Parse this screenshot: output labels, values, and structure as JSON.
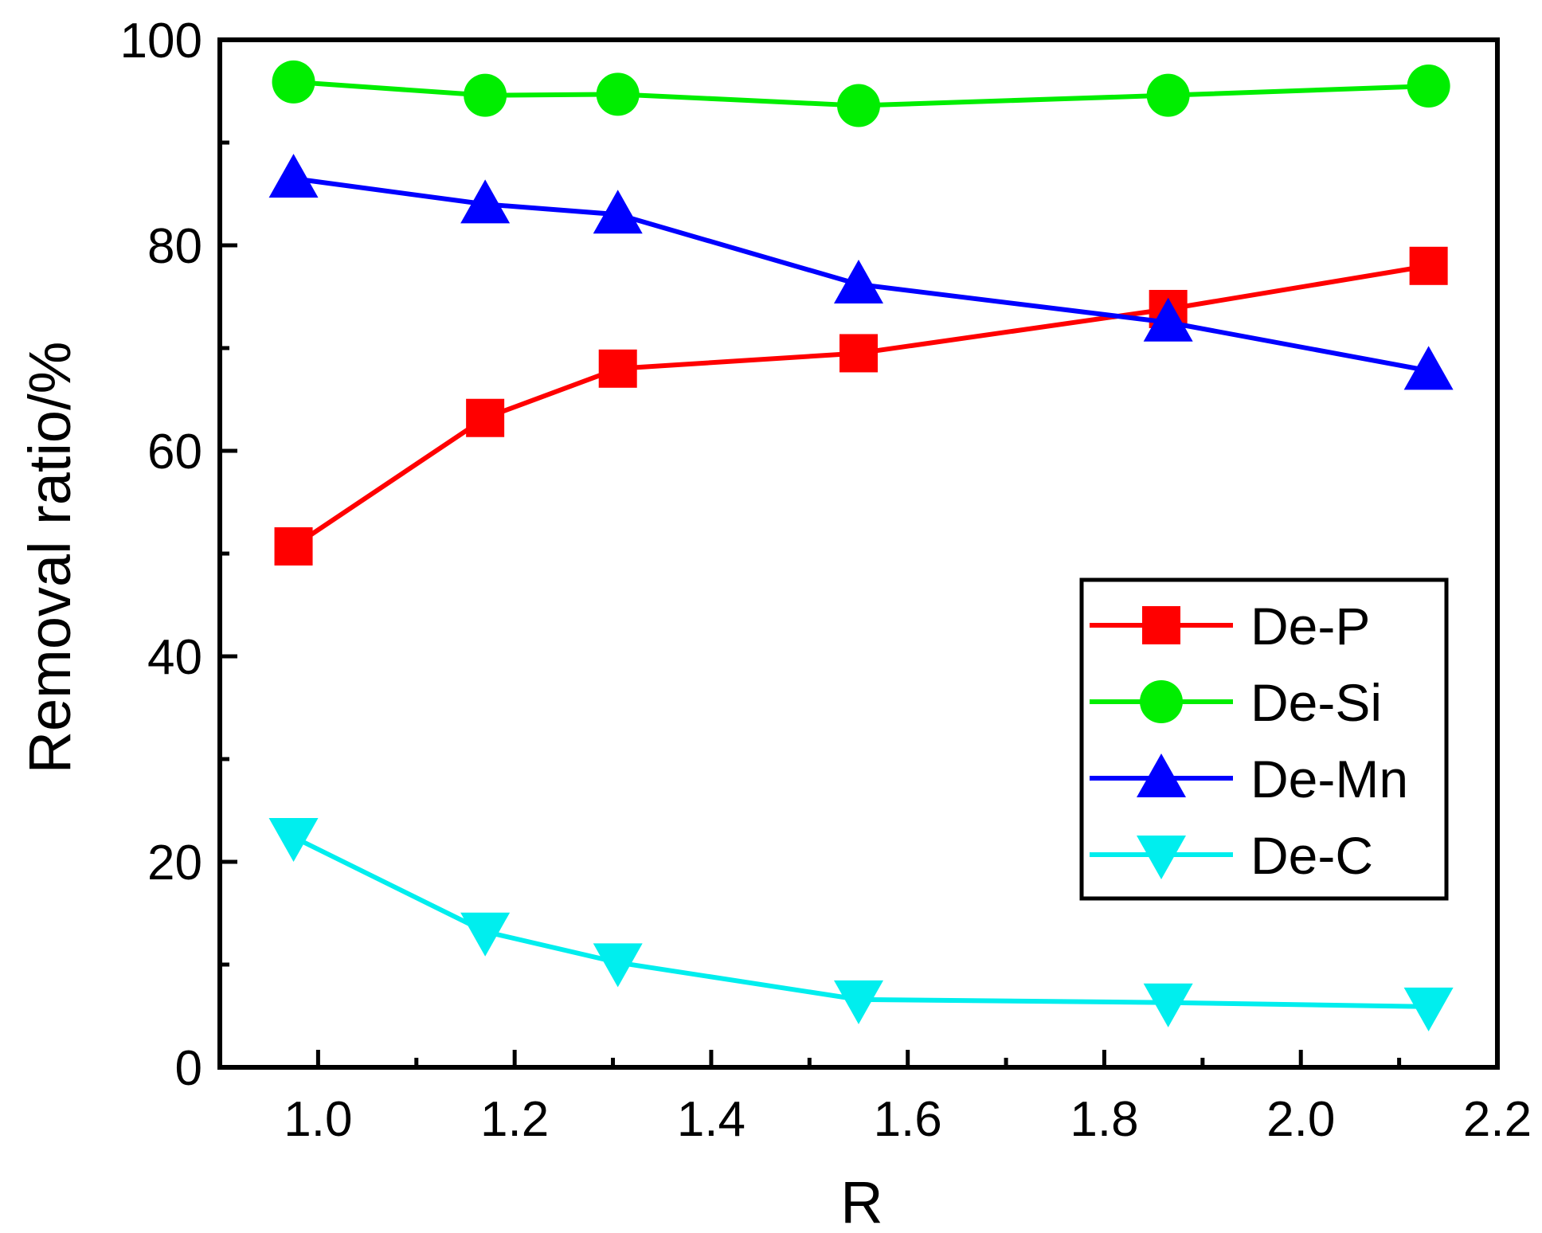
{
  "chart_data": {
    "type": "line",
    "title": "",
    "xlabel": "R",
    "ylabel": "Removal ratio/%",
    "xlim": [
      0.9,
      2.2
    ],
    "ylim": [
      0,
      100
    ],
    "x_ticks": [
      1.0,
      1.2,
      1.4,
      1.6,
      1.8,
      2.0,
      2.2
    ],
    "x_tick_labels": [
      "1.0",
      "1.2",
      "1.4",
      "1.6",
      "1.8",
      "2.0",
      "2.2"
    ],
    "y_ticks": [
      0,
      20,
      40,
      60,
      80,
      100
    ],
    "y_tick_labels": [
      "0",
      "20",
      "40",
      "60",
      "80",
      "100"
    ],
    "grid": false,
    "legend_position": "center-right",
    "x": [
      0.975,
      1.17,
      1.305,
      1.55,
      1.865,
      2.13
    ],
    "series": [
      {
        "name": "De-P",
        "color": "#ff0000",
        "marker": "square",
        "values": [
          50.7,
          63.2,
          68.0,
          69.5,
          73.8,
          78.0
        ]
      },
      {
        "name": "De-Si",
        "color": "#00ee00",
        "marker": "circle",
        "values": [
          95.9,
          94.6,
          94.7,
          93.6,
          94.6,
          95.5
        ]
      },
      {
        "name": "De-Mn",
        "color": "#0000ff",
        "marker": "triangle-up",
        "values": [
          86.5,
          84.0,
          83.0,
          76.2,
          72.5,
          67.8
        ]
      },
      {
        "name": "De-C",
        "color": "#00eeee",
        "marker": "triangle-down",
        "values": [
          22.4,
          13.2,
          10.2,
          6.6,
          6.3,
          5.9
        ]
      }
    ]
  }
}
